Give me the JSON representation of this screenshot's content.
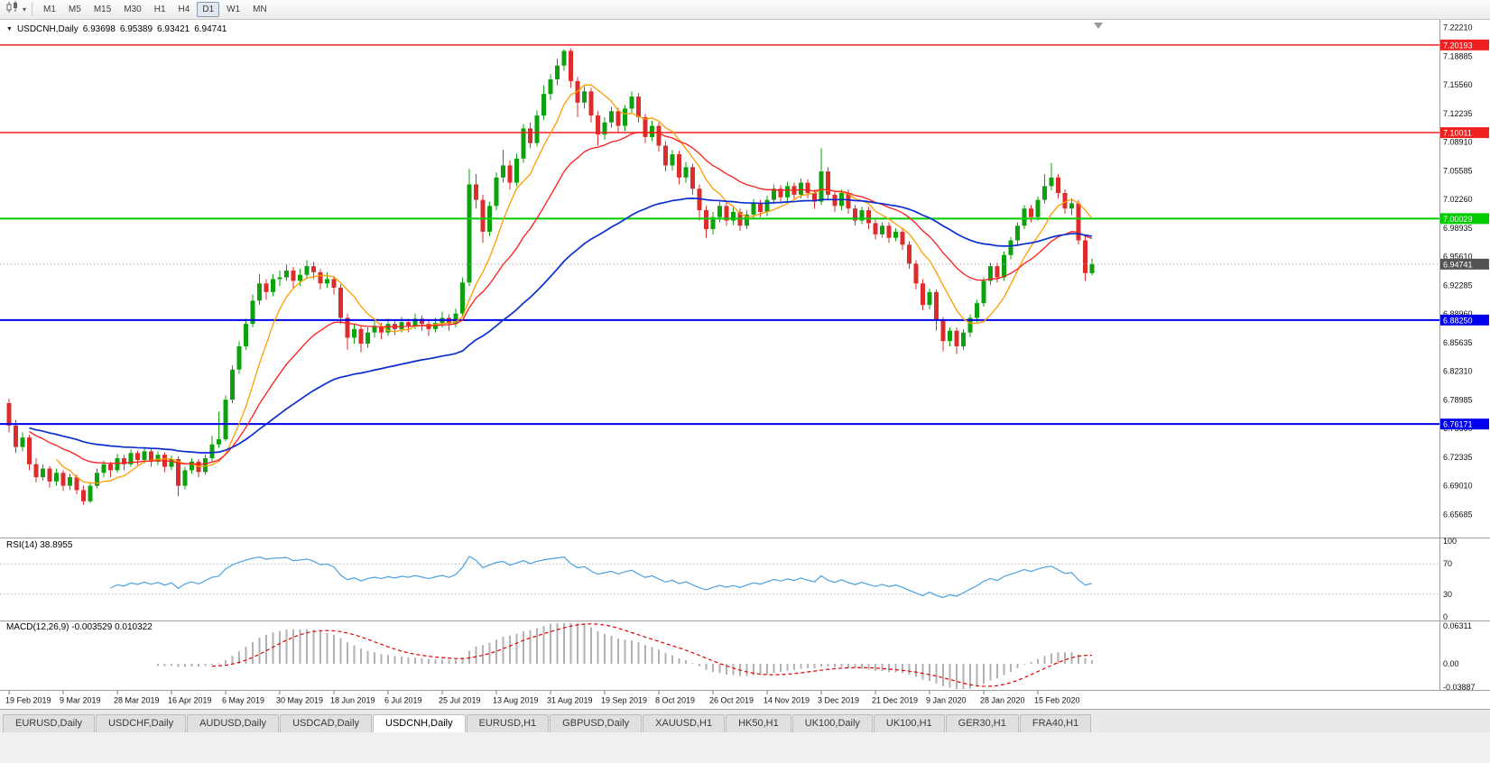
{
  "toolbar": {
    "chart_icon": "candlestick-chart-icon",
    "dropdown_icon": "chevron-down-icon",
    "timeframes": [
      "M1",
      "M5",
      "M15",
      "M30",
      "H1",
      "H4",
      "D1",
      "W1",
      "MN"
    ],
    "active_timeframe": "D1"
  },
  "chart": {
    "symbol_label": "USDCNH,Daily",
    "ohlc": {
      "open": "6.93698",
      "high": "6.95389",
      "low": "6.93421",
      "close": "6.94741"
    }
  },
  "rsi_panel": {
    "label": "RSI(14) 38.8955",
    "period": 14,
    "value": 38.8955,
    "axis_ticks": [
      100,
      70,
      30,
      0
    ],
    "levels": [
      70,
      30
    ],
    "line_color": "#4aa1e0"
  },
  "macd_panel": {
    "label": "MACD(12,26,9) -0.003529 0.010322",
    "fast": 12,
    "slow": 26,
    "signal_period": 9,
    "value": "-0.003529",
    "signal_value": "0.010322",
    "axis_ticks": [
      "0.06311",
      "0.00",
      "-0.03887"
    ],
    "histogram_color": "#b2b2b2",
    "signal_color": "#e00000"
  },
  "tabs": {
    "active_index": 4,
    "items": [
      "EURUSD,Daily",
      "USDCHF,Daily",
      "AUDUSD,Daily",
      "USDCAD,Daily",
      "USDCNH,Daily",
      "EURUSD,H1",
      "GBPUSD,Daily",
      "XAUUSD,H1",
      "HK50,H1",
      "UK100,Daily",
      "UK100,H1",
      "GER30,H1",
      "FRA40,H1"
    ]
  },
  "chart_data": {
    "type": "candlestick",
    "title": "USDCNH,Daily",
    "symbol": "USDCNH",
    "timeframe": "Daily",
    "y_range": {
      "top": 7.229,
      "bottom": 6.632
    },
    "y_axis_ticks": [
      "7.22210",
      "7.18885",
      "7.15560",
      "7.12235",
      "7.08910",
      "7.05585",
      "7.02260",
      "6.98935",
      "6.95610",
      "6.92285",
      "6.88960",
      "6.85635",
      "6.82310",
      "6.78985",
      "6.75660",
      "6.72335",
      "6.69010",
      "6.65685"
    ],
    "x_labels": [
      "19 Feb 2019",
      "9 Mar 2019",
      "28 Mar 2019",
      "16 Apr 2019",
      "6 May 2019",
      "30 May 2019",
      "18 Jun 2019",
      "6 Jul 2019",
      "25 Jul 2019",
      "13 Aug 2019",
      "31 Aug 2019",
      "19 Sep 2019",
      "8 Oct 2019",
      "26 Oct 2019",
      "14 Nov 2019",
      "3 Dec 2019",
      "21 Dec 2019",
      "9 Jan 2020",
      "28 Jan 2020",
      "15 Feb 2020"
    ],
    "x_label_bar_step": 8,
    "levels": [
      {
        "price": 7.20193,
        "label": "7.20193",
        "color": "#f02020",
        "width": 1.5,
        "type": "resistance"
      },
      {
        "price": 7.10011,
        "label": "7.10011",
        "color": "#f02020",
        "width": 1.5,
        "type": "resistance"
      },
      {
        "price": 7.00029,
        "label": "7.00029",
        "color": "#00cc00",
        "width": 2,
        "type": "pivot"
      },
      {
        "price": 6.8825,
        "label": "6.88250",
        "color": "#0000ee",
        "width": 2,
        "type": "support"
      },
      {
        "price": 6.76171,
        "label": "6.76171",
        "color": "#0000ee",
        "width": 2,
        "type": "support"
      }
    ],
    "current_price": {
      "value": 6.94741,
      "label": "6.94741",
      "color": "#545454"
    },
    "candle_colors": {
      "up": "#0da10d",
      "down": "#dd2c2c"
    },
    "overlays": [
      {
        "name": "ma-fast",
        "period": 8,
        "color": "#ff9c00"
      },
      {
        "name": "ma-mid",
        "period": 21,
        "color": "#ff1c1c"
      },
      {
        "name": "ma-slow",
        "period": 55,
        "color": "#0a2fd0"
      }
    ],
    "candles": [
      [
        6.786,
        6.791,
        6.752,
        6.76
      ],
      [
        6.76,
        6.766,
        6.728,
        6.735
      ],
      [
        6.735,
        6.752,
        6.73,
        6.746
      ],
      [
        6.746,
        6.749,
        6.708,
        6.715
      ],
      [
        6.715,
        6.722,
        6.694,
        6.7
      ],
      [
        6.7,
        6.715,
        6.696,
        6.71
      ],
      [
        6.71,
        6.713,
        6.688,
        6.695
      ],
      [
        6.695,
        6.71,
        6.69,
        6.705
      ],
      [
        6.705,
        6.708,
        6.684,
        6.69
      ],
      [
        6.69,
        6.704,
        6.685,
        6.7
      ],
      [
        6.7,
        6.703,
        6.68,
        6.685
      ],
      [
        6.685,
        6.69,
        6.668,
        6.672
      ],
      [
        6.672,
        6.694,
        6.67,
        6.69
      ],
      [
        6.69,
        6.71,
        6.687,
        6.705
      ],
      [
        6.705,
        6.719,
        6.7,
        6.715
      ],
      [
        6.715,
        6.718,
        6.7,
        6.708
      ],
      [
        6.708,
        6.727,
        6.705,
        6.722
      ],
      [
        6.722,
        6.726,
        6.708,
        6.715
      ],
      [
        6.715,
        6.732,
        6.712,
        6.728
      ],
      [
        6.728,
        6.731,
        6.714,
        6.72
      ],
      [
        6.72,
        6.734,
        6.716,
        6.73
      ],
      [
        6.73,
        6.733,
        6.712,
        6.718
      ],
      [
        6.718,
        6.73,
        6.714,
        6.726
      ],
      [
        6.726,
        6.729,
        6.706,
        6.712
      ],
      [
        6.712,
        6.725,
        6.708,
        6.721
      ],
      [
        6.721,
        6.724,
        6.678,
        6.69
      ],
      [
        6.69,
        6.712,
        6.686,
        6.708
      ],
      [
        6.708,
        6.722,
        6.704,
        6.718
      ],
      [
        6.718,
        6.721,
        6.7,
        6.706
      ],
      [
        6.706,
        6.726,
        6.703,
        6.722
      ],
      [
        6.722,
        6.748,
        6.718,
        6.738
      ],
      [
        6.738,
        6.776,
        6.734,
        6.744
      ],
      [
        6.744,
        6.795,
        6.742,
        6.79
      ],
      [
        6.79,
        6.83,
        6.786,
        6.825
      ],
      [
        6.825,
        6.858,
        6.82,
        6.852
      ],
      [
        6.852,
        6.884,
        6.848,
        6.878
      ],
      [
        6.878,
        6.912,
        6.874,
        6.905
      ],
      [
        6.905,
        6.936,
        6.9,
        6.925
      ],
      [
        6.925,
        6.93,
        6.906,
        6.915
      ],
      [
        6.915,
        6.936,
        6.91,
        6.93
      ],
      [
        6.93,
        6.94,
        6.922,
        6.932
      ],
      [
        6.932,
        6.947,
        6.928,
        6.94
      ],
      [
        6.94,
        6.944,
        6.92,
        6.928
      ],
      [
        6.928,
        6.942,
        6.922,
        6.935
      ],
      [
        6.935,
        6.952,
        6.93,
        6.945
      ],
      [
        6.945,
        6.95,
        6.93,
        6.938
      ],
      [
        6.938,
        6.942,
        6.918,
        6.925
      ],
      [
        6.925,
        6.938,
        6.92,
        6.93
      ],
      [
        6.93,
        6.934,
        6.912,
        6.92
      ],
      [
        6.92,
        6.924,
        6.878,
        6.885
      ],
      [
        6.885,
        6.89,
        6.848,
        6.862
      ],
      [
        6.862,
        6.878,
        6.855,
        6.872
      ],
      [
        6.872,
        6.876,
        6.845,
        6.855
      ],
      [
        6.855,
        6.874,
        6.85,
        6.868
      ],
      [
        6.868,
        6.882,
        6.862,
        6.875
      ],
      [
        6.875,
        6.879,
        6.86,
        6.868
      ],
      [
        6.868,
        6.884,
        6.864,
        6.878
      ],
      [
        6.878,
        6.882,
        6.865,
        6.872
      ],
      [
        6.872,
        6.886,
        6.868,
        6.88
      ],
      [
        6.88,
        6.884,
        6.868,
        6.876
      ],
      [
        6.876,
        6.89,
        6.872,
        6.884
      ],
      [
        6.884,
        6.888,
        6.87,
        6.878
      ],
      [
        6.878,
        6.882,
        6.864,
        6.872
      ],
      [
        6.872,
        6.885,
        6.868,
        6.879
      ],
      [
        6.879,
        6.892,
        6.874,
        6.885
      ],
      [
        6.885,
        6.889,
        6.87,
        6.878
      ],
      [
        6.878,
        6.896,
        6.874,
        6.89
      ],
      [
        6.89,
        6.932,
        6.886,
        6.926
      ],
      [
        6.926,
        7.058,
        6.922,
        7.04
      ],
      [
        7.04,
        7.052,
        7.012,
        7.022
      ],
      [
        7.022,
        7.028,
        6.972,
        6.985
      ],
      [
        6.985,
        7.02,
        6.98,
        7.015
      ],
      [
        7.015,
        7.054,
        7.01,
        7.048
      ],
      [
        7.048,
        7.08,
        7.042,
        7.062
      ],
      [
        7.062,
        7.068,
        7.034,
        7.042
      ],
      [
        7.042,
        7.076,
        7.038,
        7.07
      ],
      [
        7.07,
        7.11,
        7.065,
        7.105
      ],
      [
        7.105,
        7.112,
        7.082,
        7.088
      ],
      [
        7.088,
        7.126,
        7.084,
        7.12
      ],
      [
        7.12,
        7.155,
        7.115,
        7.145
      ],
      [
        7.145,
        7.168,
        7.138,
        7.162
      ],
      [
        7.162,
        7.186,
        7.155,
        7.178
      ],
      [
        7.178,
        7.197,
        7.172,
        7.195
      ],
      [
        7.195,
        7.198,
        7.152,
        7.16
      ],
      [
        7.16,
        7.165,
        7.118,
        7.135
      ],
      [
        7.135,
        7.154,
        7.128,
        7.148
      ],
      [
        7.148,
        7.152,
        7.112,
        7.12
      ],
      [
        7.12,
        7.125,
        7.085,
        7.098
      ],
      [
        7.098,
        7.118,
        7.092,
        7.112
      ],
      [
        7.112,
        7.13,
        7.106,
        7.125
      ],
      [
        7.125,
        7.129,
        7.1,
        7.108
      ],
      [
        7.108,
        7.132,
        7.102,
        7.128
      ],
      [
        7.128,
        7.148,
        7.122,
        7.142
      ],
      [
        7.142,
        7.146,
        7.112,
        7.118
      ],
      [
        7.118,
        7.122,
        7.088,
        7.095
      ],
      [
        7.095,
        7.114,
        7.09,
        7.108
      ],
      [
        7.108,
        7.112,
        7.078,
        7.085
      ],
      [
        7.085,
        7.09,
        7.055,
        7.062
      ],
      [
        7.062,
        7.08,
        7.056,
        7.075
      ],
      [
        7.075,
        7.079,
        7.04,
        7.048
      ],
      [
        7.048,
        7.066,
        7.042,
        7.06
      ],
      [
        7.06,
        7.064,
        7.028,
        7.035
      ],
      [
        7.035,
        7.04,
        6.998,
        7.01
      ],
      [
        7.01,
        7.015,
        6.978,
        6.988
      ],
      [
        6.988,
        7.008,
        6.982,
        7.002
      ],
      [
        7.002,
        7.02,
        6.996,
        7.015
      ],
      [
        7.015,
        7.019,
        6.992,
        6.998
      ],
      [
        6.998,
        7.013,
        6.993,
        7.008
      ],
      [
        7.008,
        7.012,
        6.986,
        6.992
      ],
      [
        6.992,
        7.01,
        6.988,
        7.005
      ],
      [
        7.005,
        7.023,
        7.0,
        7.018
      ],
      [
        7.018,
        7.022,
        7.002,
        7.008
      ],
      [
        7.008,
        7.027,
        7.003,
        7.022
      ],
      [
        7.022,
        7.04,
        7.017,
        7.035
      ],
      [
        7.035,
        7.039,
        7.018,
        7.025
      ],
      [
        7.025,
        7.043,
        7.02,
        7.038
      ],
      [
        7.038,
        7.042,
        7.022,
        7.028
      ],
      [
        7.028,
        7.047,
        7.024,
        7.042
      ],
      [
        7.042,
        7.046,
        7.024,
        7.03
      ],
      [
        7.03,
        7.034,
        7.012,
        7.02
      ],
      [
        7.02,
        7.082,
        7.016,
        7.055
      ],
      [
        7.055,
        7.06,
        7.022,
        7.028
      ],
      [
        7.028,
        7.032,
        7.008,
        7.015
      ],
      [
        7.015,
        7.034,
        7.01,
        7.03
      ],
      [
        7.03,
        7.034,
        7.006,
        7.012
      ],
      [
        7.012,
        7.016,
        6.992,
        6.998
      ],
      [
        6.998,
        7.014,
        6.994,
        7.01
      ],
      [
        7.01,
        7.014,
        6.988,
        6.995
      ],
      [
        6.995,
        6.999,
        6.976,
        6.982
      ],
      [
        6.982,
        6.996,
        6.978,
        6.992
      ],
      [
        6.992,
        6.996,
        6.972,
        6.978
      ],
      [
        6.978,
        6.989,
        6.974,
        6.985
      ],
      [
        6.985,
        6.989,
        6.964,
        6.97
      ],
      [
        6.97,
        6.974,
        6.942,
        6.948
      ],
      [
        6.948,
        6.952,
        6.918,
        6.925
      ],
      [
        6.925,
        6.93,
        6.894,
        6.9
      ],
      [
        6.9,
        6.919,
        6.895,
        6.915
      ],
      [
        6.915,
        6.918,
        6.87,
        6.882
      ],
      [
        6.882,
        6.886,
        6.846,
        6.858
      ],
      [
        6.858,
        6.874,
        6.852,
        6.87
      ],
      [
        6.87,
        6.874,
        6.843,
        6.852
      ],
      [
        6.852,
        6.872,
        6.848,
        6.868
      ],
      [
        6.868,
        6.889,
        6.863,
        6.885
      ],
      [
        6.885,
        6.906,
        6.88,
        6.902
      ],
      [
        6.902,
        6.932,
        6.898,
        6.928
      ],
      [
        6.928,
        6.949,
        6.923,
        6.945
      ],
      [
        6.945,
        6.949,
        6.926,
        6.932
      ],
      [
        6.932,
        6.962,
        6.928,
        6.958
      ],
      [
        6.958,
        6.979,
        6.953,
        6.975
      ],
      [
        6.975,
        6.996,
        6.97,
        6.992
      ],
      [
        6.992,
        7.016,
        6.988,
        7.012
      ],
      [
        7.012,
        7.016,
        6.996,
        7.002
      ],
      [
        7.002,
        7.026,
        6.998,
        7.022
      ],
      [
        7.022,
        7.052,
        7.018,
        7.038
      ],
      [
        7.038,
        7.065,
        7.033,
        7.048
      ],
      [
        7.048,
        7.052,
        7.024,
        7.03
      ],
      [
        7.03,
        7.034,
        7.006,
        7.012
      ],
      [
        7.012,
        7.024,
        7.004,
        7.018
      ],
      [
        7.018,
        7.022,
        6.97,
        6.975
      ],
      [
        6.975,
        6.98,
        6.928,
        6.937
      ],
      [
        6.93698,
        6.95389,
        6.93421,
        6.94741
      ]
    ]
  }
}
